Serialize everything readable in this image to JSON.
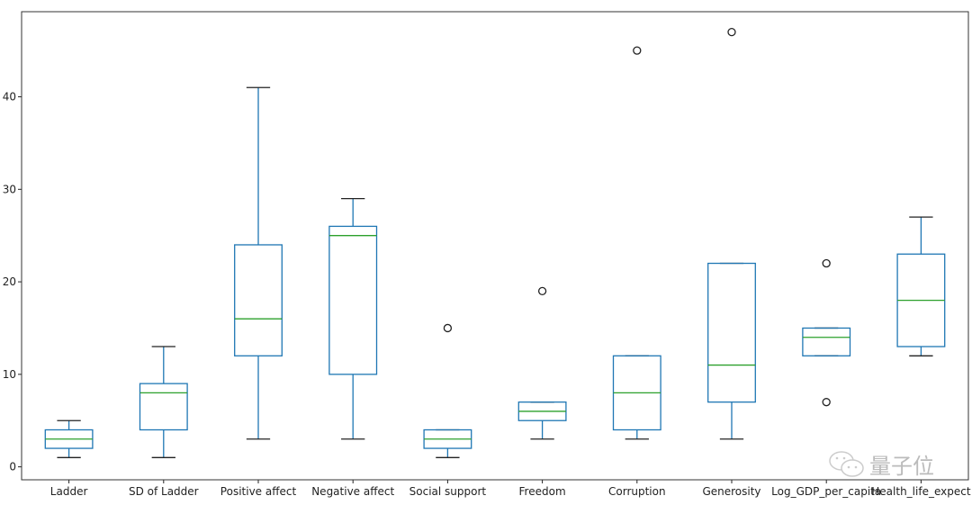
{
  "chart_data": {
    "type": "box",
    "title": "",
    "xlabel": "",
    "ylabel": "",
    "ylim": [
      -1.4,
      49.2
    ],
    "yticks": [
      0,
      10,
      20,
      30,
      40
    ],
    "grid": false,
    "categories": [
      "Ladder",
      "SD of Ladder",
      "Positive affect",
      "Negative affect",
      "Social support",
      "Freedom",
      "Corruption",
      "Generosity",
      "Log_GDP_per_capita",
      "Health_life_expect"
    ],
    "boxes": [
      {
        "whislo": 1,
        "q1": 2,
        "med": 3,
        "q3": 4,
        "whishi": 5,
        "fliers": []
      },
      {
        "whislo": 1,
        "q1": 4,
        "med": 8,
        "q3": 9,
        "whishi": 13,
        "fliers": []
      },
      {
        "whislo": 3,
        "q1": 12,
        "med": 16,
        "q3": 24,
        "whishi": 41,
        "fliers": []
      },
      {
        "whislo": 3,
        "q1": 10,
        "med": 25,
        "q3": 26,
        "whishi": 29,
        "fliers": []
      },
      {
        "whislo": 1,
        "q1": 2,
        "med": 3,
        "q3": 4,
        "whishi": 4,
        "fliers": [
          15
        ]
      },
      {
        "whislo": 3,
        "q1": 5,
        "med": 6,
        "q3": 7,
        "whishi": 7,
        "fliers": [
          19
        ]
      },
      {
        "whislo": 3,
        "q1": 4,
        "med": 8,
        "q3": 12,
        "whishi": 12,
        "fliers": [
          45
        ]
      },
      {
        "whislo": 3,
        "q1": 7,
        "med": 11,
        "q3": 22,
        "whishi": 22,
        "fliers": [
          47
        ]
      },
      {
        "whislo": 12,
        "q1": 12,
        "med": 14,
        "q3": 15,
        "whishi": 15,
        "fliers": [
          22,
          7
        ]
      },
      {
        "whislo": 12,
        "q1": 13,
        "med": 18,
        "q3": 23,
        "whishi": 27,
        "fliers": []
      }
    ],
    "colors": {
      "box": "#1f77b4",
      "median": "#2ca02c",
      "cap": "#222222",
      "flier": "#222222"
    }
  },
  "watermark": {
    "text": "量子位",
    "icon": "wechat-icon"
  }
}
